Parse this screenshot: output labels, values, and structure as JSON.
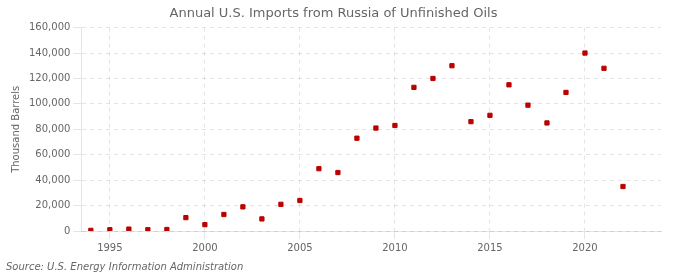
{
  "chart_data": {
    "type": "scatter",
    "title": "Annual U.S. Imports from Russia of Unfinished Oils",
    "y_label": "Thousand Barrels",
    "annotations": [
      "Source: U.S. Energy Information Administration"
    ],
    "x": [
      1994,
      1995,
      1996,
      1997,
      1998,
      1999,
      2000,
      2001,
      2002,
      2003,
      2004,
      2005,
      2006,
      2007,
      2008,
      2009,
      2010,
      2011,
      2012,
      2013,
      2014,
      2015,
      2016,
      2017,
      2018,
      2019,
      2020,
      2021,
      2022
    ],
    "values": [
      500,
      1000,
      1500,
      1000,
      1200,
      10500,
      5000,
      13000,
      19000,
      9500,
      21000,
      24000,
      49000,
      46000,
      73000,
      81000,
      83000,
      113000,
      120000,
      130000,
      86000,
      91000,
      115000,
      99000,
      85000,
      109000,
      140000,
      128000,
      35000
    ],
    "color": "#bb0000",
    "marker": "square",
    "xlim": [
      1993.5,
      2024
    ],
    "xticks": [
      1995,
      2000,
      2005,
      2010,
      2015,
      2020
    ],
    "ylim": [
      0,
      160000
    ],
    "yticks": [
      0,
      {
        "value": 20000,
        "label": "20,000"
      },
      {
        "value": 40000,
        "label": "40,000"
      },
      {
        "value": 60000,
        "label": "60,000"
      },
      {
        "value": 80000,
        "label": "80,000"
      },
      {
        "value": 100000,
        "label": "100,000"
      },
      {
        "value": 120000,
        "label": "120,000"
      },
      {
        "value": 140000,
        "label": "140,000"
      },
      {
        "value": 160000,
        "label": "160,000"
      }
    ],
    "grid": true
  }
}
